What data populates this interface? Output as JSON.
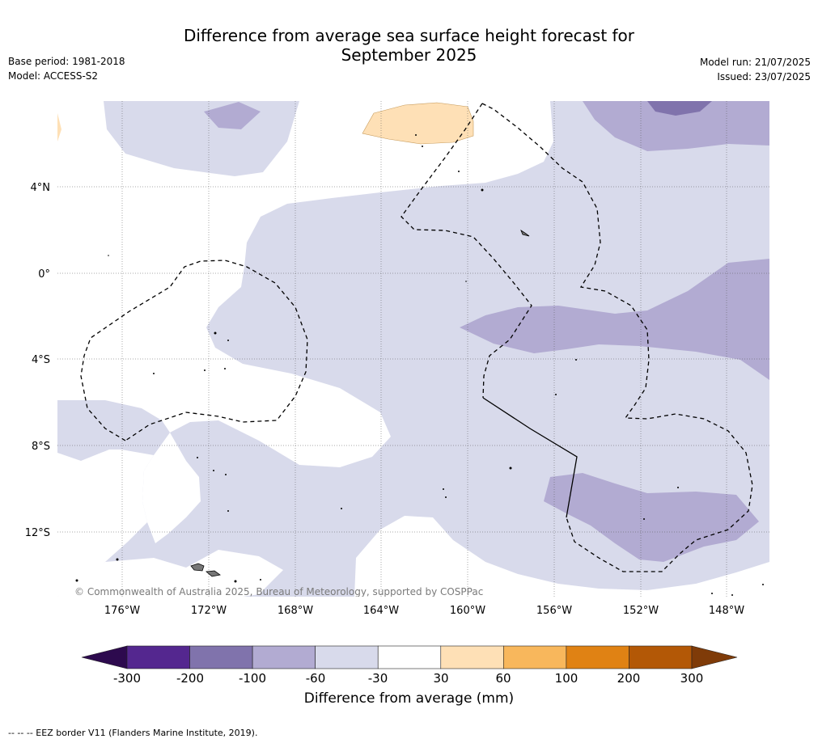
{
  "title_line1": "Difference from average sea surface height forecast for",
  "title_line2": "September 2025",
  "meta_left": [
    "Base period: 1981-2018",
    "Model: ACCESS-S2"
  ],
  "meta_right": [
    "Model run: 21/07/2025",
    "Issued: 23/07/2025"
  ],
  "copyright": "© Commonwealth of Australia 2025, Bureau of Meteorology, supported by COSPPac",
  "lat_labels": [
    "4°N",
    "0°",
    "4°S",
    "8°S",
    "12°S"
  ],
  "lon_labels": [
    "176°W",
    "172°W",
    "168°W",
    "164°W",
    "160°W",
    "156°W",
    "152°W",
    "148°W"
  ],
  "colorbar": {
    "label": "Difference from average (mm)",
    "ticks": [
      "-300",
      "-200",
      "-100",
      "-60",
      "-30",
      "30",
      "60",
      "100",
      "200",
      "300"
    ],
    "colors": [
      "#2d0a4e",
      "#54278f",
      "#8073ac",
      "#b2abd2",
      "#d8daeb",
      "#ffffff",
      "#fee0b6",
      "#f8b75c",
      "#e08214",
      "#b35806",
      "#7f3b08"
    ]
  },
  "eez_note": "--  --  -- EEZ border V11 (Flanders Marine Institute, 2019)."
}
